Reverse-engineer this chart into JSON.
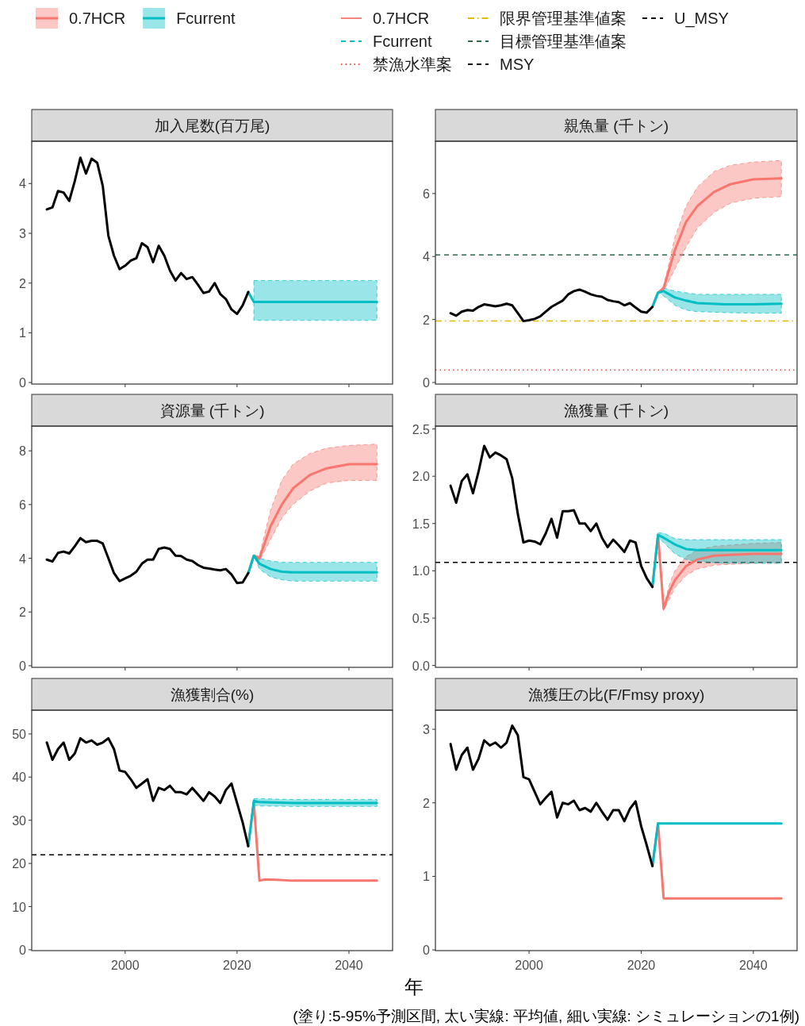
{
  "chart_data": [
    {
      "type": "line",
      "title": "加入尾数(百万尾)",
      "xlim": [
        1983.3,
        2047.8
      ],
      "xticks": [
        2000,
        2020,
        2040
      ],
      "ylim": [
        -0.03,
        4.85
      ],
      "yticks": [
        0,
        1,
        2,
        3,
        4
      ],
      "tick_labels": "y",
      "series": [
        {
          "color": "#00bfc4",
          "x": [
            2022,
            2023,
            2025,
            2030,
            2035,
            2040,
            2045
          ],
          "values": [
            1.82,
            1.62,
            1.62,
            1.62,
            1.62,
            1.62,
            1.62
          ],
          "lower": [
            null,
            1.25,
            1.25,
            1.25,
            1.25,
            1.25,
            1.25
          ],
          "upper": [
            null,
            2.05,
            2.05,
            2.05,
            2.05,
            2.05,
            2.05
          ]
        },
        {
          "color": "#000000",
          "x": [
            1986,
            1987,
            1988,
            1989,
            1990,
            1991,
            1992,
            1993,
            1994,
            1995,
            1996,
            1997,
            1998,
            1999,
            2000,
            2001,
            2002,
            2003,
            2004,
            2005,
            2006,
            2007,
            2008,
            2009,
            2010,
            2011,
            2012,
            2013,
            2014,
            2015,
            2016,
            2017,
            2018,
            2019,
            2020,
            2021,
            2022
          ],
          "values": [
            3.48,
            3.52,
            3.85,
            3.82,
            3.65,
            4.05,
            4.52,
            4.2,
            4.5,
            4.42,
            3.95,
            2.95,
            2.55,
            2.28,
            2.35,
            2.45,
            2.5,
            2.8,
            2.72,
            2.42,
            2.75,
            2.55,
            2.25,
            2.05,
            2.2,
            2.08,
            2.12,
            1.97,
            1.8,
            1.83,
            2.0,
            1.78,
            1.68,
            1.47,
            1.38,
            1.55,
            1.82
          ]
        }
      ]
    },
    {
      "type": "line",
      "title": "親魚量 (千トン)",
      "legend": "top",
      "xlim": [
        1983.3,
        2047.8
      ],
      "xticks": [
        2000,
        2020,
        2040
      ],
      "ylim": [
        -0.05,
        7.66
      ],
      "yticks": [
        0,
        2,
        4,
        6
      ],
      "tick_labels": "y",
      "ref_lines": [
        {
          "axis": "y",
          "value": 0.4,
          "label": "禁漁水準案",
          "color": "#e8504a",
          "line_style": "dotted"
        },
        {
          "axis": "y",
          "value": 1.95,
          "label": "限界管理基準値案",
          "color": "#e6b800",
          "line_style": "dashdot"
        },
        {
          "axis": "y",
          "value": 4.05,
          "label": "目標管理基準値案",
          "color": "#2e6b4f",
          "line_style": "dashed"
        }
      ],
      "series": [
        {
          "name": "0.7HCR",
          "color": "#f8766d",
          "x": [
            2022,
            2023,
            2024,
            2026,
            2028,
            2030,
            2033,
            2036,
            2040,
            2045
          ],
          "values": [
            2.4,
            2.85,
            3.0,
            4.2,
            5.1,
            5.6,
            6.05,
            6.3,
            6.45,
            6.48
          ],
          "lower": [
            null,
            2.85,
            2.9,
            3.6,
            4.3,
            4.9,
            5.4,
            5.7,
            5.85,
            5.9
          ],
          "upper": [
            null,
            2.85,
            3.05,
            4.6,
            5.6,
            6.2,
            6.7,
            6.9,
            7.0,
            7.05
          ]
        },
        {
          "name": "Fcurrent",
          "color": "#00bfc4",
          "x": [
            2022,
            2023,
            2024,
            2026,
            2028,
            2030,
            2035,
            2040,
            2045
          ],
          "values": [
            2.4,
            2.85,
            2.9,
            2.7,
            2.6,
            2.52,
            2.48,
            2.48,
            2.5
          ],
          "lower": [
            null,
            2.85,
            2.75,
            2.45,
            2.3,
            2.25,
            2.22,
            2.2,
            2.2
          ],
          "upper": [
            null,
            2.85,
            3.0,
            2.9,
            2.85,
            2.8,
            2.8,
            2.8,
            2.8
          ]
        },
        {
          "color": "#000000",
          "x": [
            1986,
            1987,
            1988,
            1989,
            1990,
            1991,
            1992,
            1993,
            1994,
            1995,
            1996,
            1997,
            1998,
            1999,
            2000,
            2001,
            2002,
            2003,
            2004,
            2005,
            2006,
            2007,
            2008,
            2009,
            2010,
            2011,
            2012,
            2013,
            2014,
            2015,
            2016,
            2017,
            2018,
            2019,
            2020,
            2021,
            2022
          ],
          "values": [
            2.2,
            2.12,
            2.25,
            2.3,
            2.28,
            2.4,
            2.48,
            2.45,
            2.42,
            2.45,
            2.5,
            2.45,
            2.2,
            1.95,
            1.98,
            2.02,
            2.1,
            2.25,
            2.4,
            2.5,
            2.6,
            2.8,
            2.9,
            2.95,
            2.88,
            2.8,
            2.75,
            2.72,
            2.62,
            2.58,
            2.55,
            2.45,
            2.52,
            2.38,
            2.25,
            2.22,
            2.4
          ]
        }
      ]
    },
    {
      "type": "line",
      "title": "資源量 (千トン)",
      "xlim": [
        1983.3,
        2047.8
      ],
      "xticks": [
        2000,
        2020,
        2040
      ],
      "ylim": [
        -0.06,
        8.92
      ],
      "yticks": [
        0,
        2,
        4,
        6,
        8
      ],
      "tick_labels": "y",
      "series": [
        {
          "color": "#f8766d",
          "x": [
            2022,
            2023,
            2024,
            2026,
            2028,
            2030,
            2033,
            2036,
            2040,
            2045
          ],
          "values": [
            3.45,
            4.1,
            4.0,
            5.2,
            6.0,
            6.6,
            7.1,
            7.35,
            7.5,
            7.5
          ],
          "lower": [
            null,
            4.1,
            3.9,
            4.7,
            5.5,
            6.0,
            6.5,
            6.8,
            6.9,
            6.9
          ],
          "upper": [
            null,
            4.1,
            4.1,
            5.8,
            6.9,
            7.5,
            7.9,
            8.1,
            8.2,
            8.25
          ]
        },
        {
          "color": "#00bfc4",
          "x": [
            2022,
            2023,
            2024,
            2026,
            2028,
            2030,
            2035,
            2040,
            2045
          ],
          "values": [
            3.45,
            4.1,
            3.8,
            3.6,
            3.5,
            3.48,
            3.48,
            3.48,
            3.48
          ],
          "lower": [
            null,
            4.1,
            3.6,
            3.3,
            3.2,
            3.15,
            3.15,
            3.15,
            3.15
          ],
          "upper": [
            null,
            4.1,
            4.0,
            3.9,
            3.85,
            3.85,
            3.85,
            3.85,
            3.85
          ]
        },
        {
          "color": "#000000",
          "x": [
            1986,
            1987,
            1988,
            1989,
            1990,
            1991,
            1992,
            1993,
            1994,
            1995,
            1996,
            1997,
            1998,
            1999,
            2000,
            2001,
            2002,
            2003,
            2004,
            2005,
            2006,
            2007,
            2008,
            2009,
            2010,
            2011,
            2012,
            2013,
            2014,
            2015,
            2016,
            2017,
            2018,
            2019,
            2020,
            2021,
            2022
          ],
          "values": [
            3.95,
            3.88,
            4.2,
            4.25,
            4.18,
            4.45,
            4.75,
            4.6,
            4.65,
            4.65,
            4.55,
            4.0,
            3.45,
            3.15,
            3.25,
            3.35,
            3.5,
            3.8,
            3.95,
            3.95,
            4.35,
            4.4,
            4.35,
            4.1,
            4.08,
            3.95,
            3.9,
            3.75,
            3.65,
            3.62,
            3.58,
            3.55,
            3.6,
            3.4,
            3.08,
            3.1,
            3.45
          ]
        }
      ]
    },
    {
      "type": "line",
      "title": "漁獲量 (千トン)",
      "xlim": [
        1983.3,
        2047.8
      ],
      "xticks": [
        2000,
        2020,
        2040
      ],
      "ylim": [
        -0.02,
        2.53
      ],
      "yticks": [
        {
          "value": 0,
          "label": "0.0"
        },
        {
          "value": 0.5,
          "label": "0.5"
        },
        {
          "value": 1,
          "label": "1.0"
        },
        {
          "value": 1.5,
          "label": "1.5"
        },
        {
          "value": 2,
          "label": "2.0"
        },
        {
          "value": 2.5,
          "label": "2.5"
        }
      ],
      "tick_labels": "y",
      "ref_lines": [
        {
          "axis": "y",
          "value": 1.09,
          "label": "MSY",
          "color": "#000000",
          "line_style": "dashed"
        }
      ],
      "series": [
        {
          "color": "#f8766d",
          "x": [
            2022,
            2023,
            2024,
            2025,
            2026,
            2028,
            2030,
            2033,
            2040,
            2045
          ],
          "values": [
            0.83,
            1.38,
            0.6,
            0.78,
            0.9,
            1.05,
            1.12,
            1.16,
            1.18,
            1.18
          ],
          "lower": [
            null,
            1.38,
            0.58,
            0.7,
            0.82,
            0.95,
            1.02,
            1.06,
            1.08,
            1.08
          ],
          "upper": [
            null,
            1.38,
            0.62,
            0.85,
            1.0,
            1.15,
            1.22,
            1.26,
            1.29,
            1.3
          ]
        },
        {
          "color": "#00bfc4",
          "x": [
            2022,
            2023,
            2024,
            2026,
            2028,
            2030,
            2035,
            2040,
            2045
          ],
          "values": [
            0.83,
            1.38,
            1.35,
            1.28,
            1.23,
            1.22,
            1.22,
            1.22,
            1.22
          ],
          "lower": [
            null,
            1.35,
            1.3,
            1.18,
            1.12,
            1.1,
            1.08,
            1.08,
            1.08
          ],
          "upper": [
            null,
            1.4,
            1.4,
            1.34,
            1.33,
            1.33,
            1.33,
            1.33,
            1.33
          ]
        },
        {
          "color": "#000000",
          "x": [
            1986,
            1987,
            1988,
            1989,
            1990,
            1991,
            1992,
            1993,
            1994,
            1995,
            1996,
            1997,
            1998,
            1999,
            2000,
            2001,
            2002,
            2003,
            2004,
            2005,
            2006,
            2007,
            2008,
            2009,
            2010,
            2011,
            2012,
            2013,
            2014,
            2015,
            2016,
            2017,
            2018,
            2019,
            2020,
            2021,
            2022
          ],
          "values": [
            1.9,
            1.72,
            1.95,
            2.02,
            1.82,
            2.05,
            2.32,
            2.2,
            2.25,
            2.22,
            2.18,
            1.98,
            1.6,
            1.3,
            1.32,
            1.31,
            1.28,
            1.4,
            1.55,
            1.35,
            1.63,
            1.63,
            1.64,
            1.5,
            1.5,
            1.42,
            1.5,
            1.35,
            1.25,
            1.33,
            1.27,
            1.2,
            1.32,
            1.3,
            1.05,
            0.92,
            0.83
          ]
        }
      ]
    },
    {
      "type": "line",
      "title": "漁獲割合(%)",
      "xlim": [
        1983.3,
        2047.8
      ],
      "xticks": [
        2000,
        2020,
        2040
      ],
      "ylim": [
        -0.2,
        55.5
      ],
      "yticks": [
        0,
        10,
        20,
        30,
        40,
        50
      ],
      "ref_lines": [
        {
          "axis": "y",
          "value": 22,
          "label": "U_MSY",
          "color": "#000000",
          "line_style": "dashed"
        }
      ],
      "series": [
        {
          "color": "#f8766d",
          "x": [
            2022,
            2023,
            2024,
            2025,
            2027,
            2030,
            2045
          ],
          "values": [
            24,
            34,
            16,
            16.3,
            16.2,
            16,
            16
          ]
        },
        {
          "color": "#00bfc4",
          "x": [
            2022,
            2023,
            2024,
            2030,
            2045
          ],
          "values": [
            24,
            34.5,
            34.2,
            34,
            34
          ],
          "lower": [
            null,
            33.5,
            33.3,
            33.2,
            33.2
          ],
          "upper": [
            null,
            35,
            35,
            34.8,
            34.8
          ]
        },
        {
          "color": "#000000",
          "x": [
            1986,
            1987,
            1988,
            1989,
            1990,
            1991,
            1992,
            1993,
            1994,
            1995,
            1996,
            1997,
            1998,
            1999,
            2000,
            2001,
            2002,
            2003,
            2004,
            2005,
            2006,
            2007,
            2008,
            2009,
            2010,
            2011,
            2012,
            2013,
            2014,
            2015,
            2016,
            2017,
            2018,
            2019,
            2020,
            2021,
            2022
          ],
          "values": [
            48,
            44,
            46.5,
            48,
            44,
            45.5,
            49,
            48,
            48.5,
            47.5,
            48,
            49,
            46.5,
            41.5,
            41.2,
            39.5,
            37.5,
            38.5,
            39.5,
            34.5,
            37.5,
            37,
            38,
            36.5,
            36.5,
            36,
            37.5,
            36,
            34.5,
            36.5,
            35.5,
            34,
            37,
            38.5,
            34,
            29.5,
            24
          ]
        }
      ]
    },
    {
      "type": "line",
      "title": "漁獲圧の比(F/Fmsy proxy)",
      "xlabel": "年",
      "annotations": [
        "(塗り:5-95%予測区間, 太い実線: 平均値, 細い実線: シミュレーションの1例)"
      ],
      "xlim": [
        1983.3,
        2047.8
      ],
      "xticks": [
        2000,
        2020,
        2040
      ],
      "ylim": [
        -0.01,
        3.26
      ],
      "yticks": [
        0,
        1,
        2,
        3
      ],
      "series": [
        {
          "color": "#f8766d",
          "x": [
            2022,
            2023,
            2024,
            2045
          ],
          "values": [
            1.14,
            1.72,
            0.7,
            0.7
          ]
        },
        {
          "color": "#00bfc4",
          "x": [
            2022,
            2023,
            2045
          ],
          "values": [
            1.14,
            1.72,
            1.72
          ]
        },
        {
          "color": "#000000",
          "x": [
            1986,
            1987,
            1988,
            1989,
            1990,
            1991,
            1992,
            1993,
            1994,
            1995,
            1996,
            1997,
            1998,
            1999,
            2000,
            2001,
            2002,
            2003,
            2004,
            2005,
            2006,
            2007,
            2008,
            2009,
            2010,
            2011,
            2012,
            2013,
            2014,
            2015,
            2016,
            2017,
            2018,
            2019,
            2020,
            2021,
            2022
          ],
          "values": [
            2.8,
            2.45,
            2.65,
            2.75,
            2.45,
            2.6,
            2.85,
            2.78,
            2.82,
            2.75,
            2.82,
            3.05,
            2.92,
            2.35,
            2.32,
            2.15,
            1.98,
            2.07,
            2.15,
            1.8,
            2.0,
            1.98,
            2.03,
            1.9,
            1.93,
            1.88,
            2.0,
            1.88,
            1.77,
            1.9,
            1.9,
            1.75,
            1.92,
            2.02,
            1.68,
            1.42,
            1.14
          ]
        }
      ]
    }
  ]
}
